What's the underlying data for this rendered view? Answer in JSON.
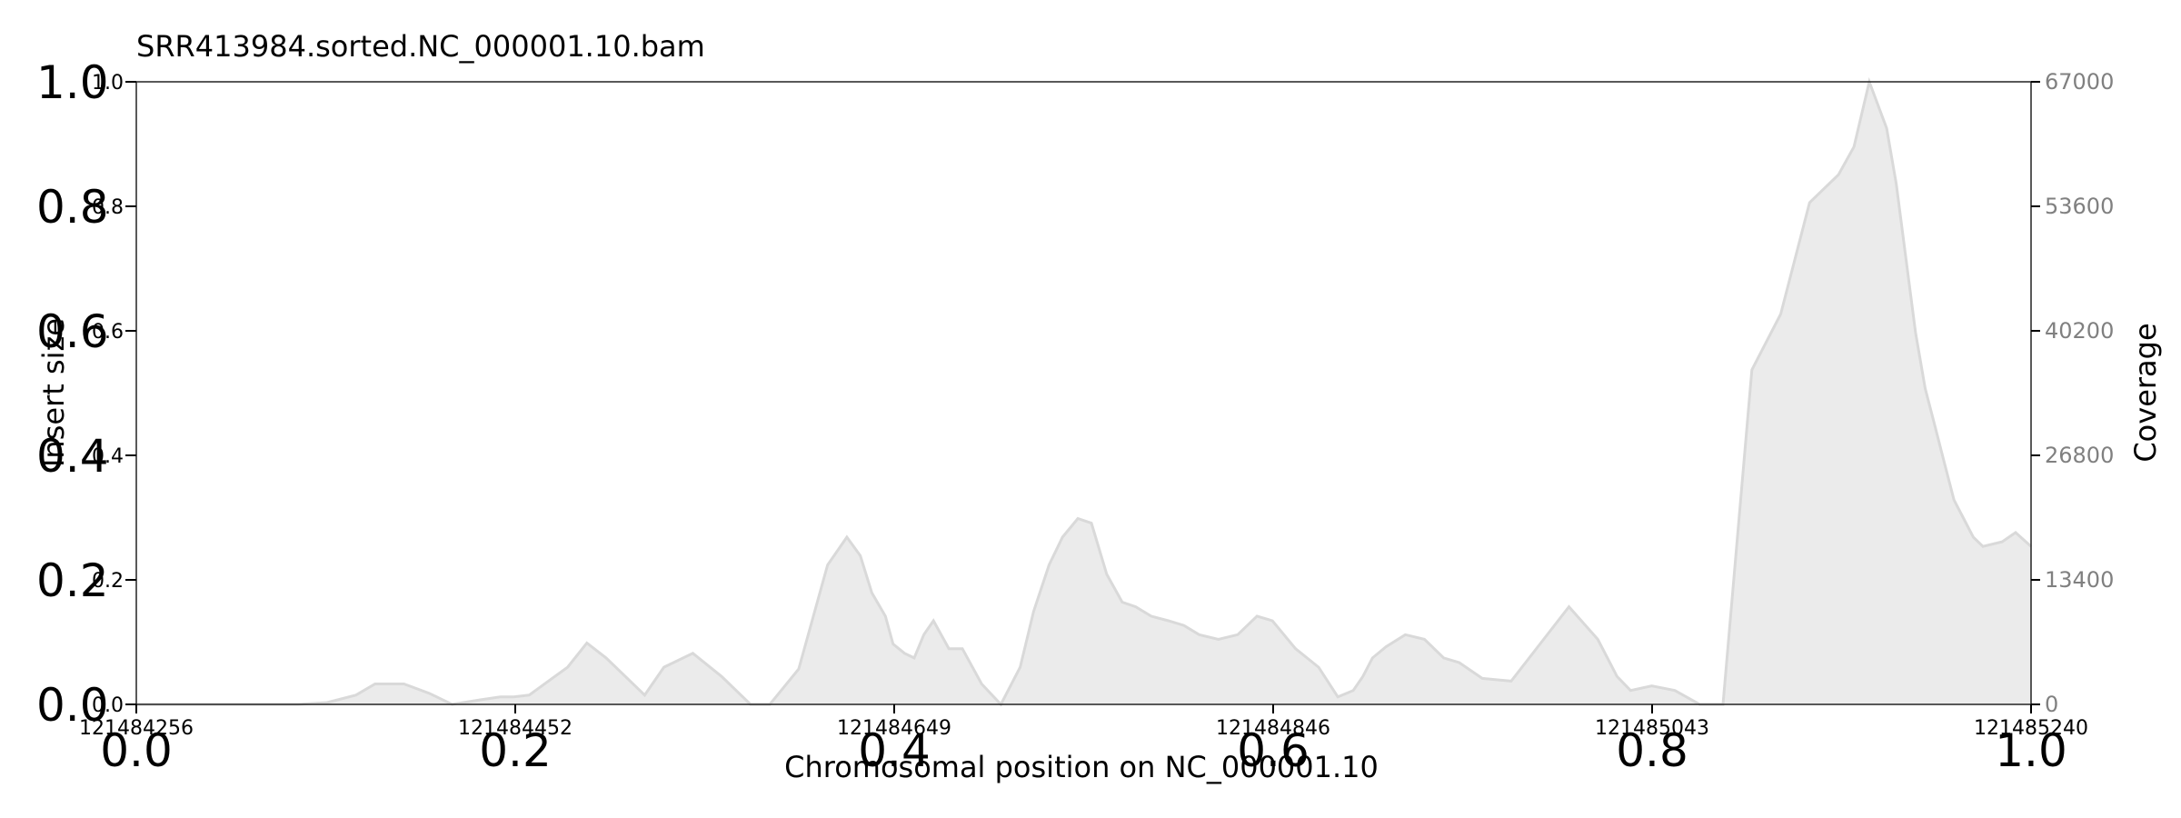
{
  "chart_data": {
    "type": "area",
    "title": "SRR413984.sorted.NC_000001.10.bam",
    "xlabel": "Chromosomal position on NC_000001.10",
    "ylabel_left": "Insert size",
    "ylabel_right": "Coverage",
    "frac_axis_ticks": [
      "0.0",
      "0.2",
      "0.4",
      "0.6",
      "0.8",
      "1.0"
    ],
    "left_inner_ticks": [
      "0.0",
      "0.2",
      "0.4",
      "0.6",
      "0.8",
      "1.0"
    ],
    "right_ticks": [
      "0",
      "13400",
      "26800",
      "40200",
      "53600",
      "67000"
    ],
    "position_ticks": [
      "121484256",
      "121484452",
      "121484649",
      "121484846",
      "121485043",
      "121485240"
    ],
    "xlim": [
      121484256,
      121485240
    ],
    "coverage_ylim": [
      0,
      67000
    ],
    "fill_color": "#ebebeb",
    "line_color": "#d9d9d9",
    "series": [
      {
        "x": [
          121484256,
          121484280,
          121484310,
          121484340,
          121484355,
          121484370,
          121484380,
          121484395,
          121484408,
          121484420,
          121484435,
          121484445,
          121484452,
          121484460,
          121484470,
          121484480,
          121484490,
          121484500,
          121484510,
          121484520,
          121484530,
          121484545,
          121484560,
          121484575,
          121484585,
          121484600,
          121484615,
          121484625,
          121484632,
          121484638,
          121484645,
          121484649,
          121484655,
          121484660,
          121484665,
          121484670,
          121484678,
          121484685,
          121484695,
          121484705,
          121484715,
          121484722,
          121484730,
          121484737,
          121484745,
          121484752,
          121484760,
          121484768,
          121484775,
          121484783,
          121484792,
          121484800,
          121484808,
          121484818,
          121484828,
          121484838,
          121484846,
          121484858,
          121484870,
          121484880,
          121484888,
          121484893,
          121484898,
          121484905,
          121484915,
          121484925,
          121484935,
          121484943,
          121484955,
          121484970,
          121484985,
          121485000,
          121485015,
          121485025,
          121485032,
          121485043,
          121485055,
          121485068,
          121485080,
          121485095,
          121485110,
          121485125,
          121485140,
          121485148,
          121485156,
          121485165,
          121485170,
          121485175,
          121485180,
          121485185,
          121485190,
          121485195,
          121485200,
          121485205,
          121485210,
          121485215,
          121485225,
          121485232,
          121485240
        ],
        "values": [
          0,
          0,
          0,
          0,
          200,
          1000,
          2200,
          2200,
          1200,
          0,
          500,
          800,
          800,
          1000,
          2500,
          4000,
          6600,
          5000,
          3000,
          1000,
          4000,
          5500,
          3000,
          0,
          0,
          3800,
          15000,
          18000,
          16000,
          12000,
          9500,
          6500,
          5500,
          5000,
          7500,
          9000,
          6000,
          6000,
          2200,
          0,
          4000,
          10000,
          15000,
          18000,
          20000,
          19500,
          14000,
          11000,
          10500,
          9500,
          9000,
          8500,
          7500,
          7000,
          7500,
          9500,
          9000,
          6000,
          4000,
          800,
          1500,
          3000,
          5000,
          6200,
          7500,
          7000,
          5000,
          4500,
          2800,
          2500,
          6500,
          10500,
          7000,
          3000,
          1500,
          2000,
          1500,
          0,
          0,
          36000,
          42000,
          54000,
          57000,
          60000,
          67000,
          62000,
          56000,
          48000,
          40000,
          34000,
          30000,
          26000,
          22000,
          20000,
          18000,
          17000,
          17500,
          18500,
          17000
        ]
      }
    ]
  }
}
